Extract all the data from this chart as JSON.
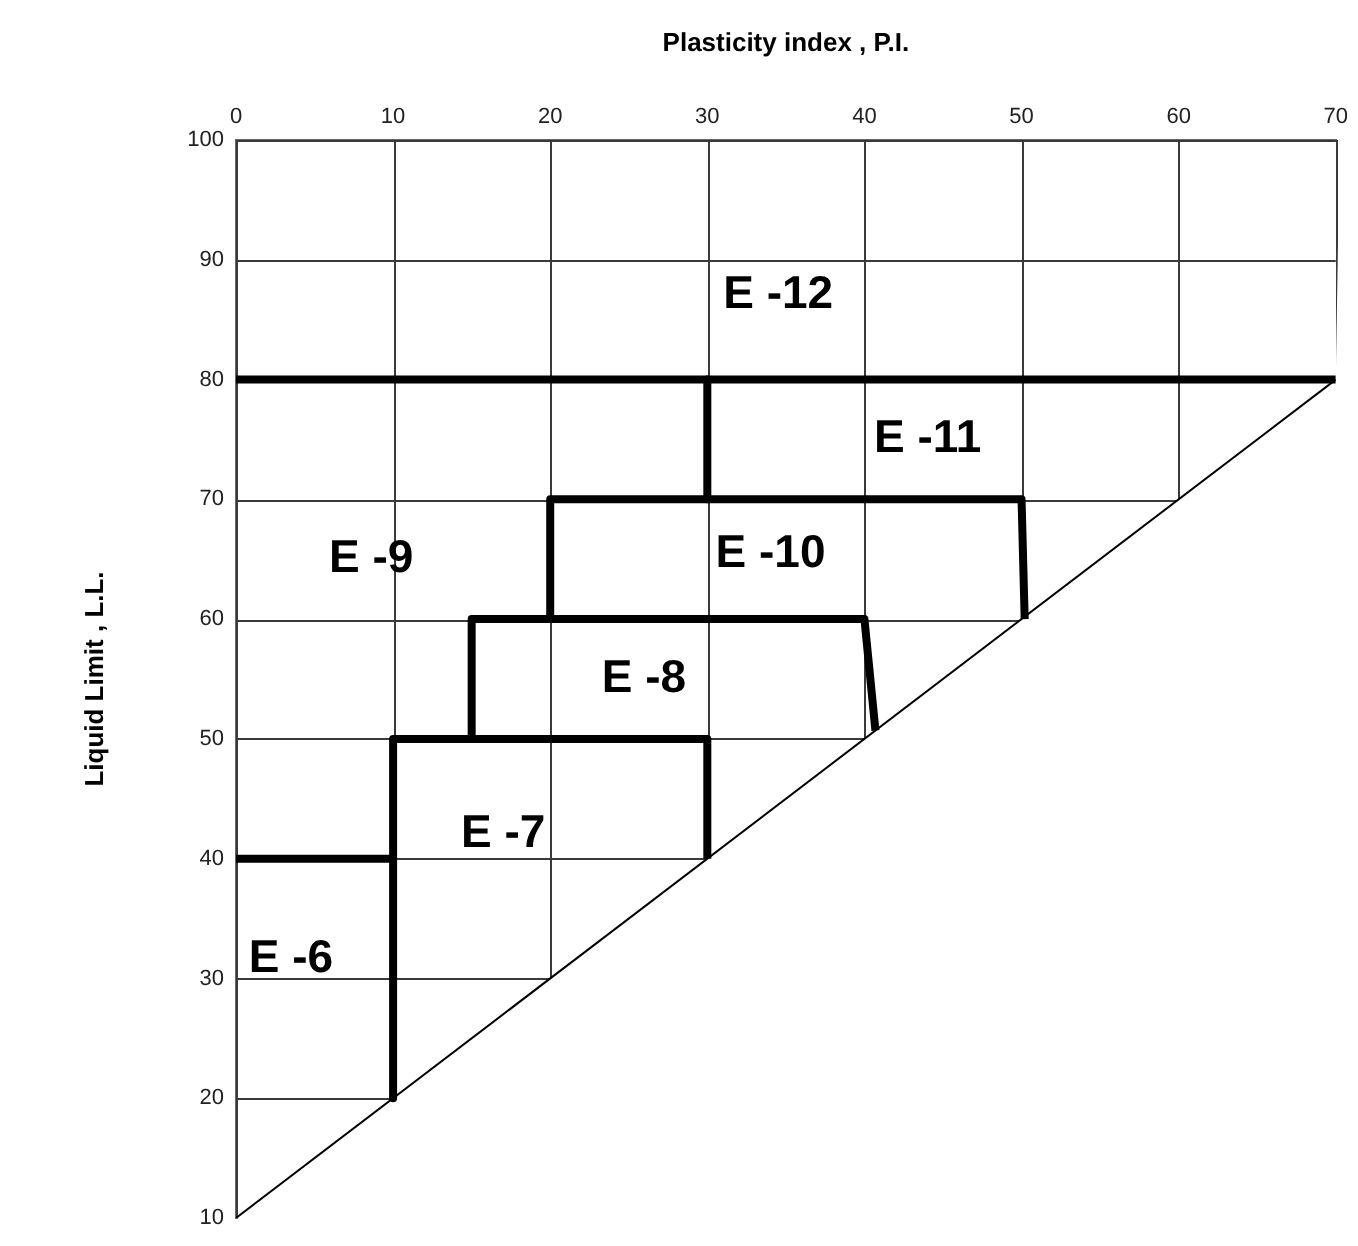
{
  "chart_data": {
    "type": "line",
    "xlabel": "Plasticity index , P.I.",
    "ylabel": "Liquid Limit , L.L.",
    "xlim": [
      0,
      70
    ],
    "ylim": [
      10,
      100
    ],
    "xticks": [
      0,
      10,
      20,
      30,
      40,
      50,
      60,
      70
    ],
    "yticks": [
      10,
      20,
      30,
      40,
      50,
      60,
      70,
      80,
      90,
      100
    ],
    "grid": true,
    "marker": "none",
    "series": [
      {
        "color": "#000000",
        "x": [
          0,
          70
        ],
        "values": [
          10,
          80
        ]
      },
      {
        "color": "#000000",
        "x": [
          0,
          70
        ],
        "values": [
          80,
          80
        ]
      },
      {
        "color": "#000000",
        "x": [
          30,
          30
        ],
        "values": [
          80,
          70
        ]
      },
      {
        "color": "#000000",
        "x": [
          20,
          20,
          50,
          50.2
        ],
        "values": [
          60,
          70,
          70,
          60
        ]
      },
      {
        "color": "#000000",
        "x": [
          15,
          15,
          40,
          40.7
        ],
        "values": [
          50,
          60,
          60,
          50.7
        ]
      },
      {
        "color": "#000000",
        "x": [
          30,
          30,
          10,
          10
        ],
        "values": [
          40,
          50,
          50,
          20
        ]
      },
      {
        "color": "#000000",
        "x": [
          0,
          10
        ],
        "values": [
          40,
          40
        ]
      }
    ],
    "annotations": [
      "E -12",
      "E -11",
      "E -9",
      "E -10",
      "E -8",
      "E -7",
      "E -6"
    ]
  }
}
